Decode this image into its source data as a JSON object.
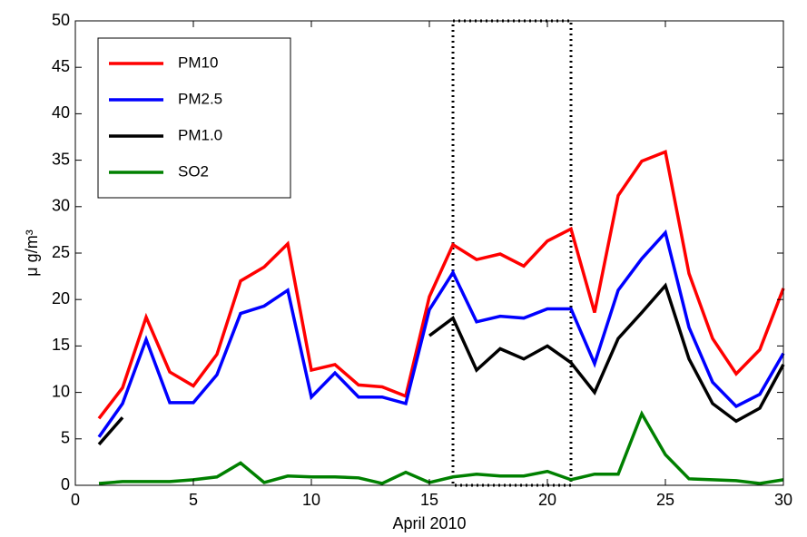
{
  "chart_data": {
    "type": "line",
    "xlabel": "April 2010",
    "ylabel": "μ g/m³",
    "x": [
      1,
      2,
      3,
      4,
      5,
      6,
      7,
      8,
      9,
      10,
      11,
      12,
      13,
      14,
      15,
      16,
      17,
      18,
      19,
      20,
      21,
      22,
      23,
      24,
      25,
      26,
      27,
      28,
      29,
      30
    ],
    "series": [
      {
        "name": "PM10",
        "color": "#ff0000",
        "values": [
          7.2,
          10.5,
          18.1,
          12.2,
          10.7,
          14.1,
          22,
          23.5,
          26,
          12.4,
          13,
          10.8,
          10.6,
          9.6,
          20.3,
          25.9,
          24.3,
          24.9,
          23.6,
          26.3,
          27.6,
          18.6,
          31.2,
          34.9,
          35.9,
          22.8,
          15.8,
          12,
          14.6,
          21.2
        ]
      },
      {
        "name": "PM2.5",
        "color": "#0000ff",
        "values": [
          5.2,
          8.8,
          15.7,
          8.9,
          8.9,
          11.9,
          18.5,
          19.3,
          21,
          9.5,
          12.1,
          9.5,
          9.5,
          8.8,
          18.9,
          22.9,
          17.6,
          18.2,
          18,
          19,
          19,
          13.1,
          21,
          24.4,
          27.2,
          17,
          11.1,
          8.5,
          9.8,
          14.2
        ]
      },
      {
        "name": "PM1.0",
        "color": "#000000",
        "values": [
          4.4,
          7.3,
          null,
          null,
          null,
          null,
          null,
          null,
          null,
          null,
          null,
          null,
          null,
          null,
          16.1,
          18,
          12.4,
          14.7,
          13.6,
          15,
          13.2,
          10,
          15.8,
          18.6,
          21.5,
          13.6,
          8.8,
          6.9,
          8.3,
          13
        ]
      },
      {
        "name": "SO2",
        "color": "#008000",
        "values": [
          0.2,
          0.4,
          0.4,
          0.4,
          0.6,
          0.9,
          2.4,
          0.3,
          1,
          0.9,
          0.9,
          0.8,
          0.2,
          1.4,
          0.3,
          0.9,
          1.2,
          1,
          1,
          1.5,
          0.6,
          1.2,
          1.2,
          7.7,
          3.3,
          0.7,
          0.6,
          0.5,
          0.2,
          0.6
        ]
      }
    ],
    "highlight_xlim": [
      16,
      21
    ],
    "xlim": [
      0,
      30
    ],
    "xticks": [
      0,
      5,
      10,
      15,
      20,
      25,
      30
    ],
    "ylim": [
      0,
      50
    ],
    "yticks": [
      0,
      5,
      10,
      15,
      20,
      25,
      30,
      35,
      40,
      45,
      50
    ],
    "legend": "top-left"
  }
}
